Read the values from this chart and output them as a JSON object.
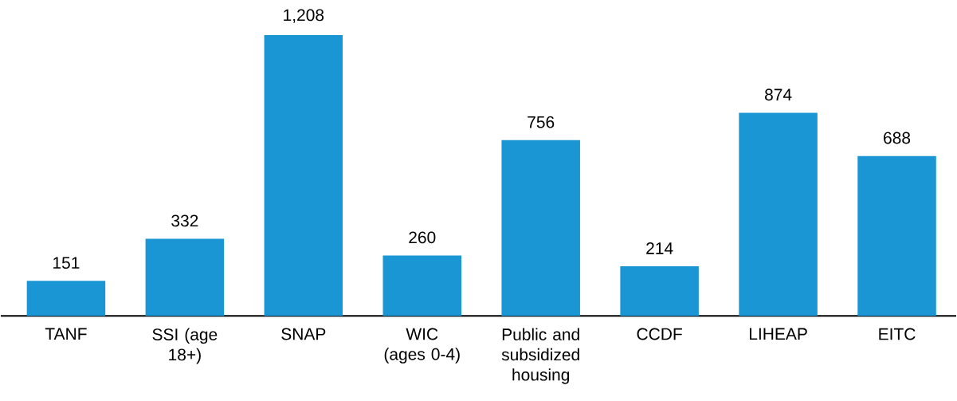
{
  "chart_data": {
    "type": "bar",
    "categories": [
      "TANF",
      "SSI (age 18+)",
      "SNAP",
      "WIC (ages 0-4)",
      "Public and subsidized housing",
      "CCDF",
      "LIHEAP",
      "EITC"
    ],
    "values": [
      151,
      332,
      1208,
      260,
      756,
      214,
      874,
      688
    ],
    "value_labels": [
      "151",
      "332",
      "1,208",
      "260",
      "756",
      "214",
      "874",
      "688"
    ],
    "color": "#1a96d4"
  }
}
